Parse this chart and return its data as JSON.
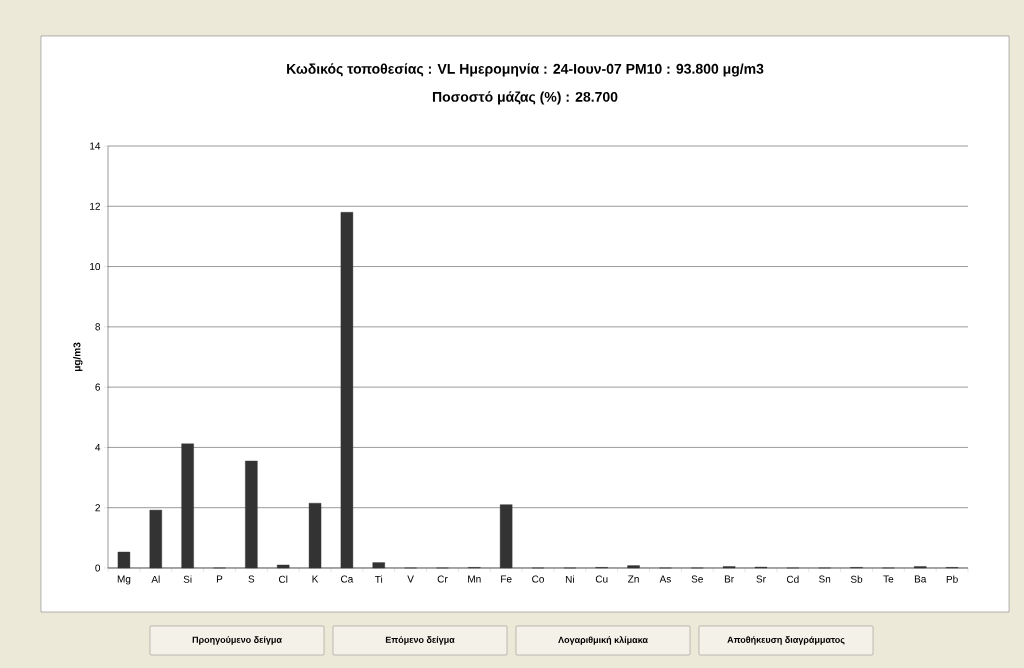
{
  "chart_data": {
    "type": "bar",
    "title": "Κωδικός τοποθεσίας : VL   Ημερομηνία : 24-Ιουν-07   PM10 : 93.800 μg/m3",
    "subtitle": "Ποσοστό μάζας (%) : 28.700",
    "ylabel": "μg/m3",
    "categories": [
      "Mg",
      "Al",
      "Si",
      "P",
      "S",
      "Cl",
      "K",
      "Ca",
      "Ti",
      "V",
      "Cr",
      "Mn",
      "Fe",
      "Co",
      "Ni",
      "Cu",
      "Zn",
      "As",
      "Se",
      "Br",
      "Sr",
      "Cd",
      "Sn",
      "Sb",
      "Te",
      "Ba",
      "Pb"
    ],
    "values": [
      0.53,
      1.92,
      4.12,
      0,
      3.55,
      0.1,
      2.15,
      11.8,
      0.18,
      0,
      0,
      0.02,
      2.1,
      0,
      0,
      0.02,
      0.08,
      0,
      0,
      0.05,
      0.03,
      0,
      0,
      0.02,
      0,
      0.05,
      0.02
    ],
    "color": "#333333",
    "ylim": [
      0,
      14
    ],
    "yticks": [
      0,
      2,
      4,
      6,
      8,
      10,
      12,
      14
    ],
    "grid": "y",
    "annotations": [
      "Προηγούμενο δείγμα",
      "Επόμενο δείγμα",
      "Λογαριθμική κλίμακα",
      "Αποθήκευση διαγράμματος"
    ]
  }
}
